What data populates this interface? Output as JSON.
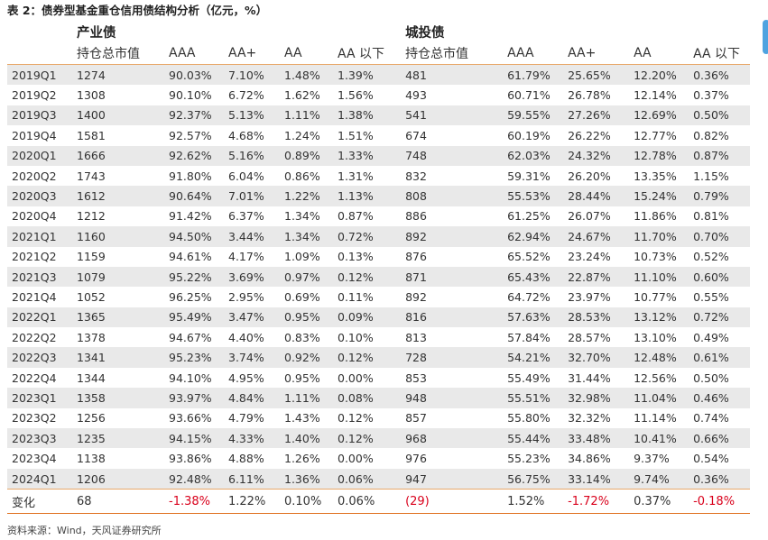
{
  "title": "表 2：债券型基金重仓信用债结构分析（亿元，%）",
  "groups": [
    "产业债",
    "城投债"
  ],
  "columns": [
    "持仓总市值",
    "AAA",
    "AA+",
    "AA",
    "AA 以下",
    "持仓总市值",
    "AAA",
    "AA+",
    "AA",
    "AA 以下"
  ],
  "rows": [
    {
      "period": "2019Q1",
      "values": [
        "1274",
        "90.03%",
        "7.10%",
        "1.48%",
        "1.39%",
        "481",
        "61.79%",
        "25.65%",
        "12.20%",
        "0.36%"
      ]
    },
    {
      "period": "2019Q2",
      "values": [
        "1308",
        "90.10%",
        "6.72%",
        "1.62%",
        "1.56%",
        "493",
        "60.71%",
        "26.78%",
        "12.14%",
        "0.37%"
      ]
    },
    {
      "period": "2019Q3",
      "values": [
        "1400",
        "92.37%",
        "5.13%",
        "1.11%",
        "1.38%",
        "541",
        "59.55%",
        "27.26%",
        "12.69%",
        "0.50%"
      ]
    },
    {
      "period": "2019Q4",
      "values": [
        "1581",
        "92.57%",
        "4.68%",
        "1.24%",
        "1.51%",
        "674",
        "60.19%",
        "26.22%",
        "12.77%",
        "0.82%"
      ]
    },
    {
      "period": "2020Q1",
      "values": [
        "1666",
        "92.62%",
        "5.16%",
        "0.89%",
        "1.33%",
        "748",
        "62.03%",
        "24.32%",
        "12.78%",
        "0.87%"
      ]
    },
    {
      "period": "2020Q2",
      "values": [
        "1743",
        "91.80%",
        "6.04%",
        "0.86%",
        "1.31%",
        "832",
        "59.31%",
        "26.20%",
        "13.35%",
        "1.15%"
      ]
    },
    {
      "period": "2020Q3",
      "values": [
        "1612",
        "90.64%",
        "7.01%",
        "1.22%",
        "1.13%",
        "808",
        "55.53%",
        "28.44%",
        "15.24%",
        "0.79%"
      ]
    },
    {
      "period": "2020Q4",
      "values": [
        "1212",
        "91.42%",
        "6.37%",
        "1.34%",
        "0.87%",
        "886",
        "61.25%",
        "26.07%",
        "11.86%",
        "0.81%"
      ]
    },
    {
      "period": "2021Q1",
      "values": [
        "1160",
        "94.50%",
        "3.44%",
        "1.34%",
        "0.72%",
        "892",
        "62.94%",
        "24.67%",
        "11.70%",
        "0.70%"
      ]
    },
    {
      "period": "2021Q2",
      "values": [
        "1159",
        "94.61%",
        "4.17%",
        "1.09%",
        "0.13%",
        "876",
        "65.52%",
        "23.24%",
        "10.73%",
        "0.52%"
      ]
    },
    {
      "period": "2021Q3",
      "values": [
        "1079",
        "95.22%",
        "3.69%",
        "0.97%",
        "0.12%",
        "871",
        "65.43%",
        "22.87%",
        "11.10%",
        "0.60%"
      ]
    },
    {
      "period": "2021Q4",
      "values": [
        "1052",
        "96.25%",
        "2.95%",
        "0.69%",
        "0.11%",
        "892",
        "64.72%",
        "23.97%",
        "10.77%",
        "0.55%"
      ]
    },
    {
      "period": "2022Q1",
      "values": [
        "1365",
        "95.49%",
        "3.47%",
        "0.95%",
        "0.09%",
        "816",
        "57.63%",
        "28.53%",
        "13.12%",
        "0.72%"
      ]
    },
    {
      "period": "2022Q2",
      "values": [
        "1378",
        "94.67%",
        "4.40%",
        "0.83%",
        "0.10%",
        "813",
        "57.84%",
        "28.57%",
        "13.10%",
        "0.49%"
      ]
    },
    {
      "period": "2022Q3",
      "values": [
        "1341",
        "95.23%",
        "3.74%",
        "0.92%",
        "0.12%",
        "728",
        "54.21%",
        "32.70%",
        "12.48%",
        "0.61%"
      ]
    },
    {
      "period": "2022Q4",
      "values": [
        "1344",
        "94.10%",
        "4.95%",
        "0.95%",
        "0.00%",
        "853",
        "55.49%",
        "31.44%",
        "12.56%",
        "0.50%"
      ]
    },
    {
      "period": "2023Q1",
      "values": [
        "1358",
        "93.97%",
        "4.84%",
        "1.11%",
        "0.08%",
        "948",
        "55.51%",
        "32.98%",
        "11.04%",
        "0.46%"
      ]
    },
    {
      "period": "2023Q2",
      "values": [
        "1256",
        "93.66%",
        "4.79%",
        "1.43%",
        "0.12%",
        "857",
        "55.80%",
        "32.32%",
        "11.14%",
        "0.74%"
      ]
    },
    {
      "period": "2023Q3",
      "values": [
        "1235",
        "94.15%",
        "4.33%",
        "1.40%",
        "0.12%",
        "968",
        "55.44%",
        "33.48%",
        "10.41%",
        "0.66%"
      ]
    },
    {
      "period": "2023Q4",
      "values": [
        "1138",
        "93.86%",
        "4.88%",
        "1.26%",
        "0.00%",
        "976",
        "55.23%",
        "34.86%",
        "9.37%",
        "0.54%"
      ]
    },
    {
      "period": "2024Q1",
      "values": [
        "1206",
        "92.48%",
        "6.11%",
        "1.36%",
        "0.06%",
        "947",
        "56.75%",
        "33.14%",
        "9.74%",
        "0.36%"
      ]
    }
  ],
  "summary": {
    "label": "变化",
    "values": [
      "68",
      "-1.38%",
      "1.22%",
      "0.10%",
      "0.06%",
      "(29)",
      "1.52%",
      "-1.72%",
      "0.37%",
      "-0.18%"
    ],
    "negative": [
      false,
      true,
      false,
      false,
      false,
      true,
      false,
      true,
      false,
      true
    ]
  },
  "colors": {
    "negative": "#d9001b",
    "row_shade": "#e9e9e9",
    "rule": "#e0701f"
  },
  "source": "资料来源：Wind，天风证券研究所"
}
